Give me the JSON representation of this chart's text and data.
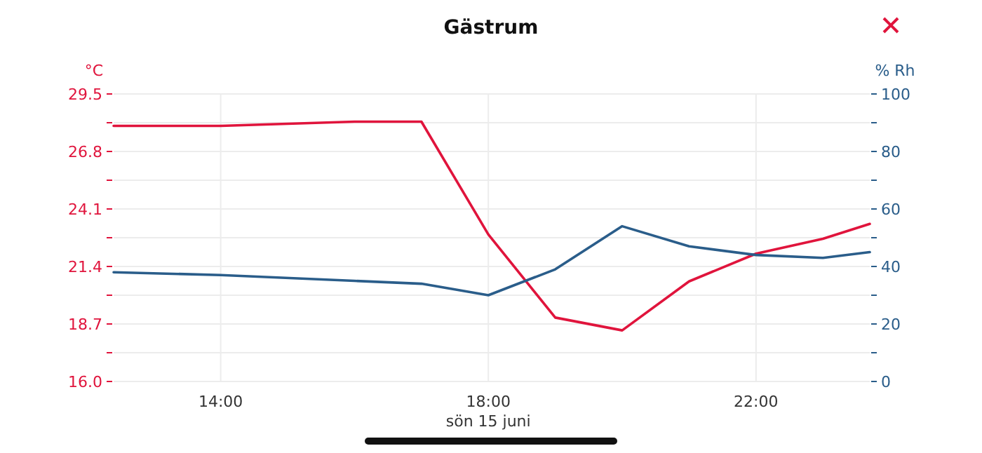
{
  "chart_data": {
    "type": "line",
    "title": "Gästrum",
    "xlabel": "sön 15 juni",
    "ylabel": "°C",
    "y2label": "% Rh",
    "x": [
      12.4,
      14,
      16,
      17,
      18,
      19,
      20,
      21,
      22,
      23,
      23.7
    ],
    "series": [
      {
        "color": "#e0143c",
        "values": [
          28.0,
          28.0,
          28.2,
          28.2,
          22.9,
          19.0,
          18.4,
          20.7,
          22.0,
          22.7,
          23.4
        ]
      },
      {
        "color": "#2a5d8a",
        "axis": "y2",
        "values": [
          38,
          37,
          35,
          34,
          30,
          39,
          54,
          47,
          44,
          43,
          45
        ]
      }
    ],
    "xlim": [
      12.4,
      23.7
    ],
    "xticks": [
      {
        "value": 14,
        "label": "14:00"
      },
      {
        "value": 18,
        "label": "18:00"
      },
      {
        "value": 22,
        "label": "22:00"
      }
    ],
    "ylim": [
      16,
      29.5
    ],
    "yticks": [
      {
        "value": 16,
        "label": "16.0"
      },
      {
        "value": 17.35,
        "label": null
      },
      {
        "value": 18.7,
        "label": "18.7"
      },
      {
        "value": 20.05,
        "label": null
      },
      {
        "value": 21.4,
        "label": "21.4"
      },
      {
        "value": 22.75,
        "label": null
      },
      {
        "value": 24.1,
        "label": "24.1"
      },
      {
        "value": 25.45,
        "label": null
      },
      {
        "value": 26.8,
        "label": "26.8"
      },
      {
        "value": 28.15,
        "label": null
      },
      {
        "value": 29.5,
        "label": "29.5"
      }
    ],
    "y2lim": [
      0,
      100
    ],
    "y2ticks": [
      0,
      {
        "value": 10,
        "label": null
      },
      20,
      {
        "value": 30,
        "label": null
      },
      40,
      {
        "value": 50,
        "label": null
      },
      60,
      {
        "value": 70,
        "label": null
      },
      80,
      {
        "value": 90,
        "label": null
      },
      100
    ],
    "grid": true,
    "marker": "none",
    "line_style": "solid"
  }
}
